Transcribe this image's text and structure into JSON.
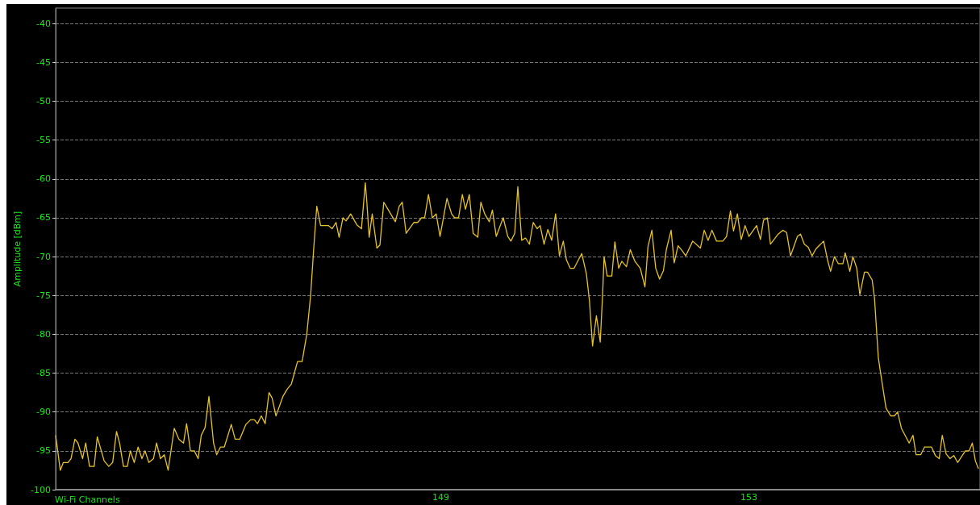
{
  "chart_data": {
    "type": "line",
    "xlabel": "Wi-Fi Channels",
    "ylabel": "Amplitude [dBm]",
    "xlim": [
      144,
      156
    ],
    "xticks": [
      149,
      153
    ],
    "ylim": [
      -100,
      -38
    ],
    "yticks": [
      -100,
      -95,
      -90,
      -85,
      -80,
      -75,
      -70,
      -65,
      -60,
      -55,
      -50,
      -45,
      -40
    ],
    "grid": "y",
    "marker": "none",
    "line_style": "solid",
    "series": [
      {
        "color": "#e6c229",
        "x": [
          144.0,
          144.06,
          144.1,
          144.16,
          144.2,
          144.25,
          144.29,
          144.35,
          144.39,
          144.44,
          144.5,
          144.54,
          144.63,
          144.69,
          144.74,
          144.79,
          144.83,
          144.88,
          144.93,
          144.97,
          145.02,
          145.07,
          145.12,
          145.16,
          145.21,
          145.27,
          145.31,
          145.36,
          145.41,
          145.46,
          145.54,
          145.6,
          145.66,
          145.7,
          145.75,
          145.8,
          145.85,
          145.89,
          145.94,
          145.99,
          146.05,
          146.09,
          146.14,
          146.19,
          146.28,
          146.33,
          146.39,
          146.47,
          146.53,
          146.58,
          146.62,
          146.67,
          146.72,
          146.77,
          146.81,
          146.86,
          146.95,
          147.01,
          147.06,
          147.14,
          147.2,
          147.26,
          147.31,
          147.35,
          147.39,
          147.44,
          147.54,
          147.59,
          147.64,
          147.68,
          147.73,
          147.77,
          147.83,
          147.91,
          147.97,
          148.02,
          148.04,
          148.07,
          148.11,
          148.17,
          148.21,
          148.26,
          148.32,
          148.41,
          148.46,
          148.5,
          148.55,
          148.65,
          148.7,
          148.75,
          148.79,
          148.84,
          148.89,
          148.94,
          148.99,
          149.08,
          149.14,
          149.18,
          149.23,
          149.28,
          149.32,
          149.37,
          149.42,
          149.48,
          149.52,
          149.57,
          149.63,
          149.67,
          149.72,
          149.81,
          149.87,
          149.91,
          149.96,
          150.0,
          150.05,
          150.1,
          150.15,
          150.2,
          150.25,
          150.29,
          150.34,
          150.39,
          150.44,
          150.49,
          150.54,
          150.59,
          150.63,
          150.68,
          150.73,
          150.83,
          150.89,
          150.93,
          150.97,
          151.02,
          151.07,
          151.1,
          151.12,
          151.16,
          151.22,
          151.26,
          151.31,
          151.35,
          151.41,
          151.46,
          151.52,
          151.59,
          151.65,
          151.69,
          151.74,
          151.79,
          151.84,
          151.89,
          151.93,
          151.99,
          152.03,
          152.08,
          152.13,
          152.18,
          152.27,
          152.37,
          152.42,
          152.47,
          152.52,
          152.58,
          152.66,
          152.71,
          152.76,
          152.8,
          152.85,
          152.9,
          152.95,
          153.0,
          153.1,
          153.15,
          153.19,
          153.24,
          153.28,
          153.38,
          153.44,
          153.49,
          153.54,
          153.63,
          153.67,
          153.72,
          153.77,
          153.82,
          153.87,
          153.97,
          154.02,
          154.06,
          154.11,
          154.16,
          154.22,
          154.25,
          154.31,
          154.35,
          154.4,
          154.44,
          154.5,
          154.54,
          154.6,
          154.63,
          154.68,
          154.71,
          154.78,
          154.84,
          154.89,
          154.93,
          154.98,
          155.08,
          155.13,
          155.17,
          155.23,
          155.28,
          155.37,
          155.42,
          155.47,
          155.51,
          155.56,
          155.61,
          155.66,
          155.71,
          155.81,
          155.86,
          155.9,
          155.94,
          155.98
        ],
        "values": [
          -93,
          -97.5,
          -96.5,
          -96.5,
          -96,
          -93.5,
          -94,
          -96,
          -94,
          -97,
          -97,
          -93.2,
          -96.3,
          -97,
          -96.5,
          -92.5,
          -94,
          -97,
          -97,
          -95,
          -96.5,
          -94.5,
          -96,
          -95,
          -96.5,
          -96,
          -94,
          -96,
          -95.5,
          -97.5,
          -92.1,
          -93.5,
          -94,
          -91.5,
          -95,
          -95,
          -96,
          -93,
          -92,
          -88,
          -94,
          -95.5,
          -94.5,
          -94.5,
          -91.6,
          -93.5,
          -93.5,
          -91.6,
          -91,
          -91,
          -91.5,
          -90.5,
          -91.5,
          -87.5,
          -88.2,
          -90.5,
          -88,
          -87,
          -86.4,
          -83.5,
          -83.5,
          -80,
          -75,
          -69,
          -63.5,
          -66,
          -66,
          -66.4,
          -65.6,
          -67.5,
          -65,
          -65.4,
          -64.5,
          -65.9,
          -66.4,
          -60.5,
          -63,
          -67.5,
          -64.5,
          -68.9,
          -68.5,
          -63,
          -64,
          -65.5,
          -63.5,
          -63,
          -67,
          -65.6,
          -65.6,
          -65,
          -65,
          -62,
          -65,
          -64.5,
          -67.4,
          -62.5,
          -64.5,
          -65,
          -65,
          -62,
          -63.9,
          -62,
          -67,
          -67.5,
          -63,
          -64.5,
          -65.5,
          -64,
          -67.4,
          -65,
          -67.4,
          -68,
          -67,
          -61,
          -67.9,
          -67.6,
          -68.4,
          -65.6,
          -66.4,
          -66,
          -68.4,
          -66.5,
          -67.9,
          -64.5,
          -69.9,
          -68,
          -70.4,
          -71.5,
          -71.5,
          -69.6,
          -72.2,
          -75.7,
          -81.5,
          -77.6,
          -81,
          -75,
          -70,
          -72.5,
          -72.5,
          -68.1,
          -71.5,
          -70.6,
          -71.3,
          -69.1,
          -70.6,
          -71.5,
          -73.9,
          -68.7,
          -66.6,
          -71.5,
          -72.9,
          -71.8,
          -69,
          -66.6,
          -70.8,
          -68.6,
          -69.2,
          -69.9,
          -68,
          -68.9,
          -66.6,
          -67.9,
          -66.6,
          -68,
          -68,
          -67.4,
          -64.1,
          -66.7,
          -64.5,
          -67.8,
          -66,
          -67.4,
          -66,
          -67.8,
          -65.3,
          -65,
          -68.4,
          -67.1,
          -66.6,
          -66.9,
          -69.9,
          -67.4,
          -67.1,
          -68.4,
          -68.8,
          -69.9,
          -69,
          -68,
          -70.4,
          -71.9,
          -70,
          -70.9,
          -70.9,
          -69.5,
          -71.9,
          -70,
          -71.5,
          -74.9,
          -72,
          -72,
          -73,
          -75.3,
          -83,
          -85,
          -89.5,
          -90.5,
          -90.5,
          -90,
          -92.1,
          -94,
          -93,
          -95.5,
          -95.5,
          -94.5,
          -94.5,
          -95.6,
          -96,
          -93,
          -95.4,
          -96,
          -95.6,
          -96.5,
          -95,
          -95,
          -94,
          -96.3,
          -97.3
        ]
      }
    ]
  }
}
